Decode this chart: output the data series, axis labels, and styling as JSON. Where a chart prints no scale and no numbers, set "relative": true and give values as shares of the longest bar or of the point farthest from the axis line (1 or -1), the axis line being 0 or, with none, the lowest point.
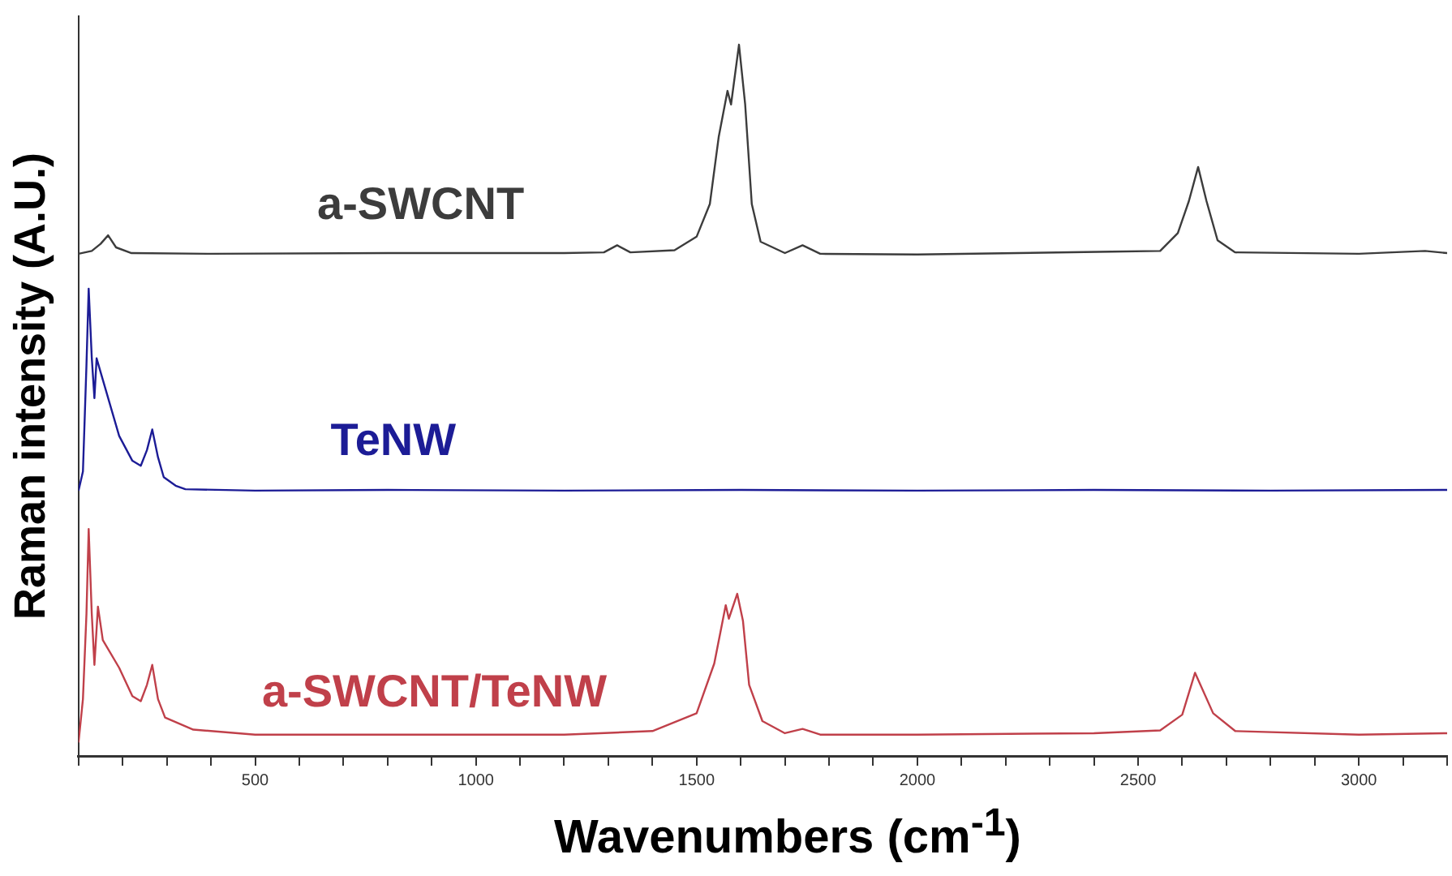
{
  "chart_data": {
    "type": "line",
    "xlabel": "Wavenumbers (cm$^{-1}$)",
    "ylabel": "Raman intensity (A.U.)",
    "relative": true,
    "xlim": [
      100,
      3200
    ],
    "xticks": [
      {
        "value": 100,
        "label": null
      },
      {
        "value": 200,
        "label": null
      },
      {
        "value": 300,
        "label": null
      },
      {
        "value": 400,
        "label": null
      },
      500,
      {
        "value": 600,
        "label": null
      },
      {
        "value": 700,
        "label": null
      },
      {
        "value": 800,
        "label": null
      },
      {
        "value": 900,
        "label": null
      },
      1000,
      {
        "value": 1100,
        "label": null
      },
      {
        "value": 1200,
        "label": null
      },
      {
        "value": 1300,
        "label": null
      },
      {
        "value": 1400,
        "label": null
      },
      1500,
      {
        "value": 1600,
        "label": null
      },
      {
        "value": 1700,
        "label": null
      },
      {
        "value": 1800,
        "label": null
      },
      {
        "value": 1900,
        "label": null
      },
      2000,
      {
        "value": 2100,
        "label": null
      },
      {
        "value": 2200,
        "label": null
      },
      {
        "value": 2300,
        "label": null
      },
      {
        "value": 2400,
        "label": null
      },
      2500,
      {
        "value": 2600,
        "label": null
      },
      {
        "value": 2700,
        "label": null
      },
      {
        "value": 2800,
        "label": null
      },
      {
        "value": 2900,
        "label": null
      },
      3000,
      {
        "value": 3100,
        "label": null
      },
      {
        "value": 3200,
        "label": null
      }
    ],
    "grid": false,
    "legend": false,
    "marker": "none",
    "line_style": "solid",
    "series": [
      {
        "name": "a-SWCNT",
        "color": "#3c3c3c",
        "x": [
          100,
          130,
          150,
          167,
          185,
          220,
          400,
          800,
          1200,
          1290,
          1320,
          1350,
          1450,
          1500,
          1530,
          1550,
          1570,
          1578,
          1596,
          1610,
          1625,
          1645,
          1700,
          1740,
          1780,
          2000,
          2440,
          2550,
          2590,
          2615,
          2636,
          2655,
          2680,
          2720,
          3000,
          3150,
          3200
        ],
        "values": [
          0.706,
          0.71,
          0.72,
          0.732,
          0.715,
          0.707,
          0.706,
          0.707,
          0.707,
          0.708,
          0.718,
          0.708,
          0.711,
          0.73,
          0.776,
          0.87,
          0.935,
          0.916,
          1.0,
          0.916,
          0.776,
          0.723,
          0.707,
          0.718,
          0.706,
          0.705,
          0.709,
          0.71,
          0.735,
          0.78,
          0.828,
          0.78,
          0.725,
          0.708,
          0.706,
          0.71,
          0.707
        ]
      },
      {
        "name": "TeNW",
        "color": "#1c1c96",
        "x": [
          100,
          110,
          118,
          123,
          130,
          136,
          141,
          155,
          192,
          222,
          241,
          255,
          267,
          280,
          293,
          320,
          342,
          500,
          800,
          1200,
          1600,
          2000,
          2400,
          2800,
          3200
        ],
        "values": [
          0.373,
          0.4,
          0.55,
          0.657,
          0.56,
          0.503,
          0.559,
          0.529,
          0.45,
          0.415,
          0.408,
          0.43,
          0.459,
          0.42,
          0.392,
          0.38,
          0.375,
          0.373,
          0.374,
          0.373,
          0.374,
          0.373,
          0.374,
          0.373,
          0.374
        ]
      },
      {
        "name": "a-SWCNT/TeNW",
        "color": "#c0404a",
        "x": [
          100,
          110,
          118,
          123,
          130,
          136,
          144,
          155,
          192,
          222,
          241,
          255,
          267,
          280,
          296,
          360,
          500,
          800,
          1200,
          1400,
          1500,
          1540,
          1566,
          1573,
          1592,
          1605,
          1619,
          1649,
          1700,
          1740,
          1780,
          2000,
          2400,
          2550,
          2600,
          2629,
          2670,
          2720,
          3000,
          3200
        ],
        "values": [
          0.019,
          0.08,
          0.2,
          0.319,
          0.2,
          0.128,
          0.21,
          0.163,
          0.124,
          0.084,
          0.077,
          0.1,
          0.128,
          0.08,
          0.054,
          0.037,
          0.03,
          0.03,
          0.03,
          0.035,
          0.06,
          0.13,
          0.212,
          0.193,
          0.228,
          0.19,
          0.1,
          0.049,
          0.032,
          0.038,
          0.03,
          0.03,
          0.032,
          0.036,
          0.058,
          0.117,
          0.06,
          0.035,
          0.03,
          0.032
        ]
      }
    ]
  }
}
